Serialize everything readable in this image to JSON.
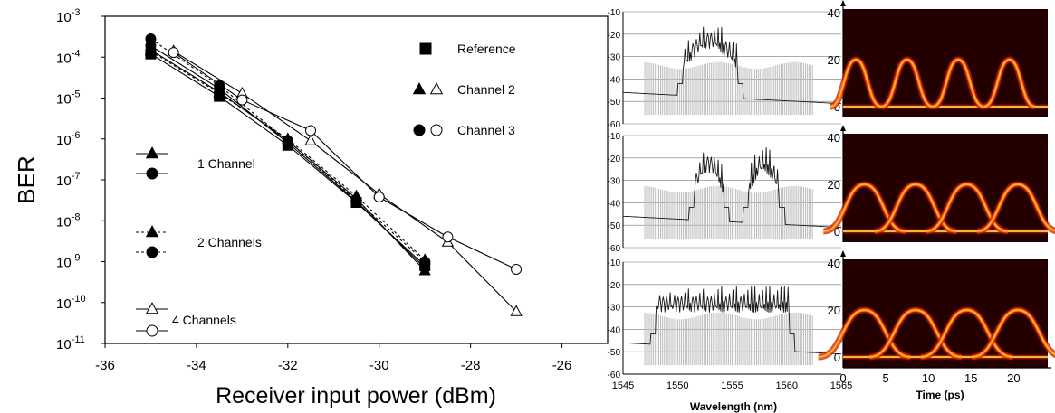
{
  "colors": {
    "axis": "#000000",
    "spectrum_envelope": "#bdbdbd",
    "spectrum_trace": "#1a1a1a",
    "heat_bg": "#240000",
    "heat_mid": "#c01a00",
    "heat_hot": "#ffd040"
  },
  "chart_data": [
    {
      "type": "line",
      "scale": "log-y",
      "ylabel": "BER",
      "xlabel": "Receiver input power (dBm)",
      "xlim": [
        -36,
        -25
      ],
      "ylim_exp": [
        -11,
        -3
      ],
      "xticks": [
        "-36",
        "-34",
        "-32",
        "-30",
        "-28",
        "-26"
      ],
      "yticks": [
        {
          "base": "10",
          "exp": "-3"
        },
        {
          "base": "10",
          "exp": "-4"
        },
        {
          "base": "10",
          "exp": "-5"
        },
        {
          "base": "10",
          "exp": "-6"
        },
        {
          "base": "10",
          "exp": "-7"
        },
        {
          "base": "10",
          "exp": "-8"
        },
        {
          "base": "10",
          "exp": "-9"
        },
        {
          "base": "10",
          "exp": "-10"
        },
        {
          "base": "10",
          "exp": "-11"
        }
      ],
      "marker_legend": [
        {
          "label": "Reference",
          "markers": [
            "square-filled"
          ]
        },
        {
          "label": "Channel 2",
          "markers": [
            "triangle-filled",
            "triangle-open"
          ]
        },
        {
          "label": "Channel 3",
          "markers": [
            "circle-filled",
            "circle-open"
          ]
        }
      ],
      "line_legend": [
        {
          "label": "1 Channel",
          "line": "solid",
          "markers": [
            "triangle-filled",
            "circle-filled"
          ]
        },
        {
          "label": "2 Channels",
          "line": "dashed",
          "markers": [
            "triangle-filled",
            "circle-filled"
          ]
        },
        {
          "label": "4 Channels",
          "line": "solid",
          "markers": [
            "triangle-open",
            "circle-open"
          ]
        }
      ],
      "series": [
        {
          "marker": "square-filled",
          "line": "solid",
          "points": [
            [
              -35,
              0.00012
            ],
            [
              -33.5,
              1.1e-05
            ],
            [
              -32,
              7e-07
            ],
            [
              -30.5,
              2.8e-08
            ],
            [
              -29,
              8e-10
            ]
          ]
        },
        {
          "marker": "triangle-filled",
          "line": "solid",
          "points": [
            [
              -35,
              0.00015
            ],
            [
              -33.5,
              1.4e-05
            ],
            [
              -32,
              9e-07
            ],
            [
              -30.5,
              3.5e-08
            ],
            [
              -29,
              6e-10
            ]
          ]
        },
        {
          "marker": "circle-filled",
          "line": "solid",
          "points": [
            [
              -35,
              0.00019
            ],
            [
              -33.5,
              1.7e-05
            ],
            [
              -32,
              8e-07
            ],
            [
              -30.5,
              3e-08
            ],
            [
              -29,
              7e-10
            ]
          ]
        },
        {
          "marker": "triangle-filled",
          "line": "dashed",
          "points": [
            [
              -35,
              0.00014
            ],
            [
              -33.5,
              1.3e-05
            ],
            [
              -32,
              1e-06
            ],
            [
              -30.5,
              4e-08
            ],
            [
              -29,
              1.1e-09
            ]
          ]
        },
        {
          "marker": "circle-filled",
          "line": "dashed",
          "points": [
            [
              -35,
              0.00028
            ],
            [
              -33.5,
              2e-05
            ],
            [
              -32,
              9e-07
            ],
            [
              -30.5,
              3.2e-08
            ],
            [
              -29,
              1e-09
            ]
          ]
        },
        {
          "marker": "triangle-open",
          "line": "solid",
          "points": [
            [
              -34.5,
              0.00014
            ],
            [
              -33,
              1.3e-05
            ],
            [
              -31.5,
              9e-07
            ],
            [
              -30,
              4.5e-08
            ],
            [
              -28.5,
              3e-09
            ],
            [
              -27,
              6e-11
            ]
          ]
        },
        {
          "marker": "circle-open",
          "line": "solid",
          "points": [
            [
              -34.5,
              0.00013
            ],
            [
              -33,
              9e-06
            ],
            [
              -31.5,
              1.6e-06
            ],
            [
              -30,
              3.8e-08
            ],
            [
              -28.5,
              4e-09
            ],
            [
              -27,
              6.5e-10
            ]
          ]
        }
      ]
    },
    {
      "type": "line",
      "xlabel": "Wavelength (nm)",
      "xlim": [
        1545,
        1565
      ],
      "ylim": [
        -60,
        -10
      ],
      "xticks": [
        "1545",
        "1550",
        "1555",
        "1560",
        "1565"
      ],
      "yticks": [
        "-10",
        "-20",
        "-30",
        "-40",
        "-50",
        "-60"
      ],
      "panels": [
        {
          "bands": [
            [
              1550.5,
              1555.5
            ]
          ],
          "envelope": [
            1547,
            1562.5
          ]
        },
        {
          "bands": [
            [
              1551.5,
              1554.2
            ],
            [
              1556.5,
              1559.3
            ]
          ],
          "envelope": [
            1547,
            1562.5
          ]
        },
        {
          "bands": [
            [
              1548,
              1560.2
            ]
          ],
          "envelope": [
            1547,
            1562.5
          ]
        }
      ]
    },
    {
      "type": "heatmap",
      "xlabel": "Time (ps)",
      "xlim": [
        0,
        24
      ],
      "ylim": [
        0,
        40
      ],
      "xticks": [
        "0",
        "5",
        "10",
        "15",
        "20"
      ],
      "yticks": [
        "0",
        "20",
        "40"
      ],
      "panels": [
        {
          "pulse_centers": [
            1.5,
            7.5,
            13.5,
            19.5
          ],
          "peak_y": 20,
          "half_width": 2
        },
        {
          "pulse_centers": [
            2.5,
            8.5,
            14.5,
            20.5
          ],
          "peak_y": 20,
          "half_width": 3.2
        },
        {
          "pulse_centers": [
            2.5,
            8.5,
            14.5,
            20.5
          ],
          "peak_y": 20,
          "half_width": 3.6
        }
      ]
    }
  ]
}
